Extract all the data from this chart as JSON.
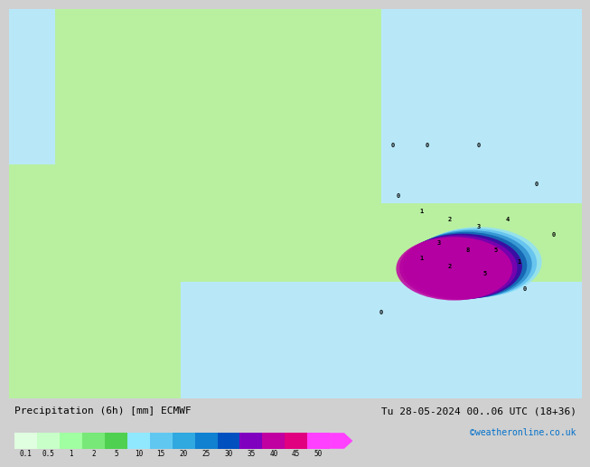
{
  "title_left": "Precipitation (6h) [mm] ECMWF",
  "title_right": "Tu 28-05-2024 00..06 UTC (18+36)",
  "credit": "©weatheronline.co.uk",
  "colorbar_values": [
    0.1,
    0.5,
    1,
    2,
    5,
    10,
    15,
    20,
    25,
    30,
    35,
    40,
    45,
    50
  ],
  "colorbar_colors": [
    "#e0ffe0",
    "#c8ffc8",
    "#a0ffa0",
    "#78e878",
    "#50d050",
    "#90e8ff",
    "#60c8f0",
    "#30a8e0",
    "#1080d0",
    "#0050c0",
    "#8000c0",
    "#c000a0",
    "#e00080",
    "#ff40ff"
  ],
  "bg_color": "#d0d0d0",
  "map_bg": "#c8e8ff",
  "land_color": "#b8f0a0",
  "colorbar_label_fontsize": 7,
  "title_fontsize": 8,
  "credit_fontsize": 7,
  "credit_color": "#0070cc"
}
